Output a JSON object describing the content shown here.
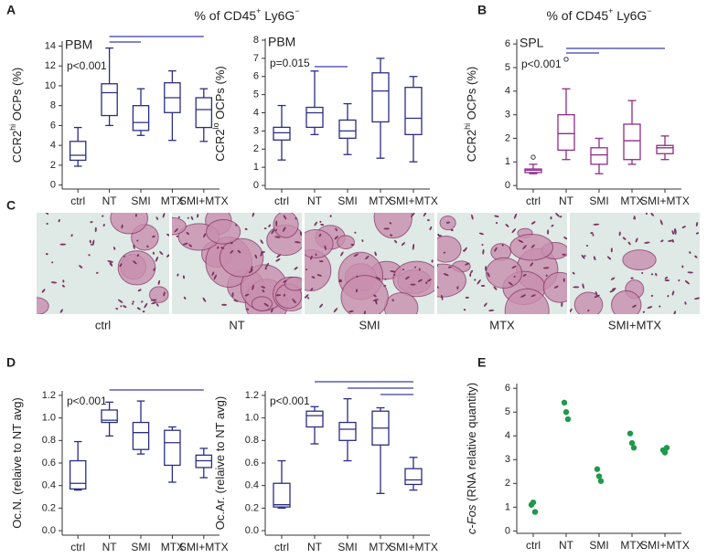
{
  "panels": {
    "A": {
      "label": "A",
      "header": [
        "% of CD45",
        "+",
        " Ly6G",
        "−"
      ]
    },
    "B": {
      "label": "B",
      "header": [
        "% of CD45",
        "+",
        " Ly6G",
        "−"
      ]
    },
    "C": {
      "label": "C",
      "images": [
        "ctrl",
        "NT",
        "SMI",
        "MTX",
        "SMI+MTX"
      ]
    },
    "D": {
      "label": "D"
    },
    "E": {
      "label": "E"
    }
  },
  "chart_data": [
    {
      "type": "box",
      "subtitle": "PBM",
      "annotation": "p<0.001",
      "ylabel": [
        "CCR2",
        "hi",
        " OCPs (%)"
      ],
      "categories": [
        "ctrl",
        "NT",
        "SMI",
        "MTX",
        "SMI+MTX"
      ],
      "color": "#2b2d84",
      "boxes": [
        {
          "whislo": 1.9,
          "q1": 2.5,
          "med": 3.0,
          "q3": 4.4,
          "whishi": 5.8
        },
        {
          "whislo": 6.0,
          "q1": 7.0,
          "med": 9.3,
          "q3": 10.2,
          "whishi": 13.8
        },
        {
          "whislo": 5.0,
          "q1": 5.5,
          "med": 6.3,
          "q3": 8.0,
          "whishi": 9.7
        },
        {
          "whislo": 4.5,
          "q1": 7.3,
          "med": 8.8,
          "q3": 10.3,
          "whishi": 11.5
        },
        {
          "whislo": 4.4,
          "q1": 5.8,
          "med": 7.6,
          "q3": 8.8,
          "whishi": 9.7
        }
      ],
      "ylim": [
        -0.4,
        14.5
      ],
      "yticks": [
        0,
        2,
        4,
        6,
        8,
        10,
        12,
        14
      ]
    },
    {
      "type": "box",
      "subtitle": "PBM",
      "annotation": "p=0.015",
      "ylabel": [
        "CCR2",
        "lo",
        " OCPs (%)"
      ],
      "categories": [
        "ctrl",
        "NT",
        "SMI",
        "MTX",
        "SMI+MTX"
      ],
      "color": "#2b2d84",
      "boxes": [
        {
          "whislo": 1.4,
          "q1": 2.5,
          "med": 2.9,
          "q3": 3.2,
          "whishi": 4.4
        },
        {
          "whislo": 2.8,
          "q1": 3.2,
          "med": 4.0,
          "q3": 4.3,
          "whishi": 6.3
        },
        {
          "whislo": 1.7,
          "q1": 2.6,
          "med": 3.0,
          "q3": 3.6,
          "whishi": 4.5
        },
        {
          "whislo": 1.5,
          "q1": 3.5,
          "med": 5.2,
          "q3": 6.2,
          "whishi": 7.0
        },
        {
          "whislo": 1.3,
          "q1": 2.8,
          "med": 3.7,
          "q3": 5.4,
          "whishi": 6.0
        }
      ],
      "ylim": [
        -0.2,
        8.1
      ],
      "yticks": [
        0,
        1,
        2,
        3,
        4,
        5,
        6,
        7,
        8
      ]
    },
    {
      "type": "box",
      "subtitle": "SPL",
      "annotation": "p<0.001",
      "ylabel": [
        "CCR2",
        "hi",
        " OCPs (%)"
      ],
      "categories": [
        "ctrl",
        "NT",
        "SMI",
        "MTX",
        "SMI+MTX"
      ],
      "color": "#8e2c87",
      "boxes": [
        {
          "whislo": 0.5,
          "q1": 0.55,
          "med": 0.65,
          "q3": 0.7,
          "whishi": 0.9,
          "fliers": [
            1.2
          ]
        },
        {
          "whislo": 1.1,
          "q1": 1.5,
          "med": 2.2,
          "q3": 3.0,
          "whishi": 4.1,
          "fliers": [
            5.35
          ]
        },
        {
          "whislo": 0.5,
          "q1": 0.9,
          "med": 1.3,
          "q3": 1.6,
          "whishi": 2.0
        },
        {
          "whislo": 0.9,
          "q1": 1.1,
          "med": 1.9,
          "q3": 2.6,
          "whishi": 3.6
        },
        {
          "whislo": 1.1,
          "q1": 1.35,
          "med": 1.6,
          "q3": 1.7,
          "whishi": 2.1
        }
      ],
      "ylim": [
        -0.15,
        6.2
      ],
      "yticks": [
        0,
        1,
        2,
        3,
        4,
        5,
        6
      ]
    },
    {
      "type": "box",
      "annotation": "p<0.001",
      "ylabel": [
        "Oc.N. (relaive to NT avg)"
      ],
      "categories": [
        "ctrl",
        "NT",
        "SMI",
        "MTX",
        "SMI+MTX"
      ],
      "color": "#2b2d84",
      "boxes": [
        {
          "whislo": 0.36,
          "q1": 0.37,
          "med": 0.42,
          "q3": 0.62,
          "whishi": 0.79
        },
        {
          "whislo": 0.84,
          "q1": 0.96,
          "med": 0.98,
          "q3": 1.07,
          "whishi": 1.14
        },
        {
          "whislo": 0.68,
          "q1": 0.72,
          "med": 0.87,
          "q3": 0.96,
          "whishi": 1.15
        },
        {
          "whislo": 0.43,
          "q1": 0.58,
          "med": 0.78,
          "q3": 0.89,
          "whishi": 0.92
        },
        {
          "whislo": 0.47,
          "q1": 0.56,
          "med": 0.62,
          "q3": 0.67,
          "whishi": 0.73
        }
      ],
      "ylim": [
        -0.04,
        1.24
      ],
      "yticks": [
        {
          "value": 0,
          "label": "0.0"
        },
        0.2,
        0.4,
        0.6,
        0.8,
        {
          "value": 1,
          "label": "1.0"
        },
        1.2
      ]
    },
    {
      "type": "box",
      "annotation": "p<0.001",
      "ylabel": [
        "Oc.Ar. (relaive to NT avg)"
      ],
      "categories": [
        "ctrl",
        "NT",
        "SMI",
        "MTX",
        "SMI+MTX"
      ],
      "color": "#2b2d84",
      "boxes": [
        {
          "whislo": 0.2,
          "q1": 0.21,
          "med": 0.23,
          "q3": 0.42,
          "whishi": 0.62
        },
        {
          "whislo": 0.77,
          "q1": 0.92,
          "med": 1.02,
          "q3": 1.06,
          "whishi": 1.1
        },
        {
          "whislo": 0.62,
          "q1": 0.8,
          "med": 0.9,
          "q3": 0.96,
          "whishi": 1.17
        },
        {
          "whislo": 0.33,
          "q1": 0.76,
          "med": 0.91,
          "q3": 1.06,
          "whishi": 1.09
        },
        {
          "whislo": 0.36,
          "q1": 0.41,
          "med": 0.45,
          "q3": 0.55,
          "whishi": 0.65
        }
      ],
      "ylim": [
        -0.04,
        1.24
      ],
      "yticks": [
        {
          "value": 0,
          "label": "0.0"
        },
        0.2,
        0.4,
        0.6,
        0.8,
        {
          "value": 1,
          "label": "1.0"
        },
        1.2
      ]
    },
    {
      "type": "strip",
      "ylabel": [
        "c-Fos",
        " (RNA relative quantity)"
      ],
      "categories": [
        "ctrl",
        "NT",
        "SMI",
        "MTX",
        "SMI+MTX"
      ],
      "color": "#1e9a4a",
      "values": [
        [
          1.1,
          1.2,
          0.8
        ],
        [
          5.4,
          5.0,
          4.7
        ],
        [
          2.6,
          2.3,
          2.1
        ],
        [
          4.1,
          3.7,
          3.5
        ],
        [
          3.4,
          3.3,
          3.5
        ]
      ],
      "ylim": [
        -0.1,
        6.2
      ],
      "yticks": [
        0,
        1,
        2,
        3,
        4,
        5,
        6
      ]
    }
  ]
}
